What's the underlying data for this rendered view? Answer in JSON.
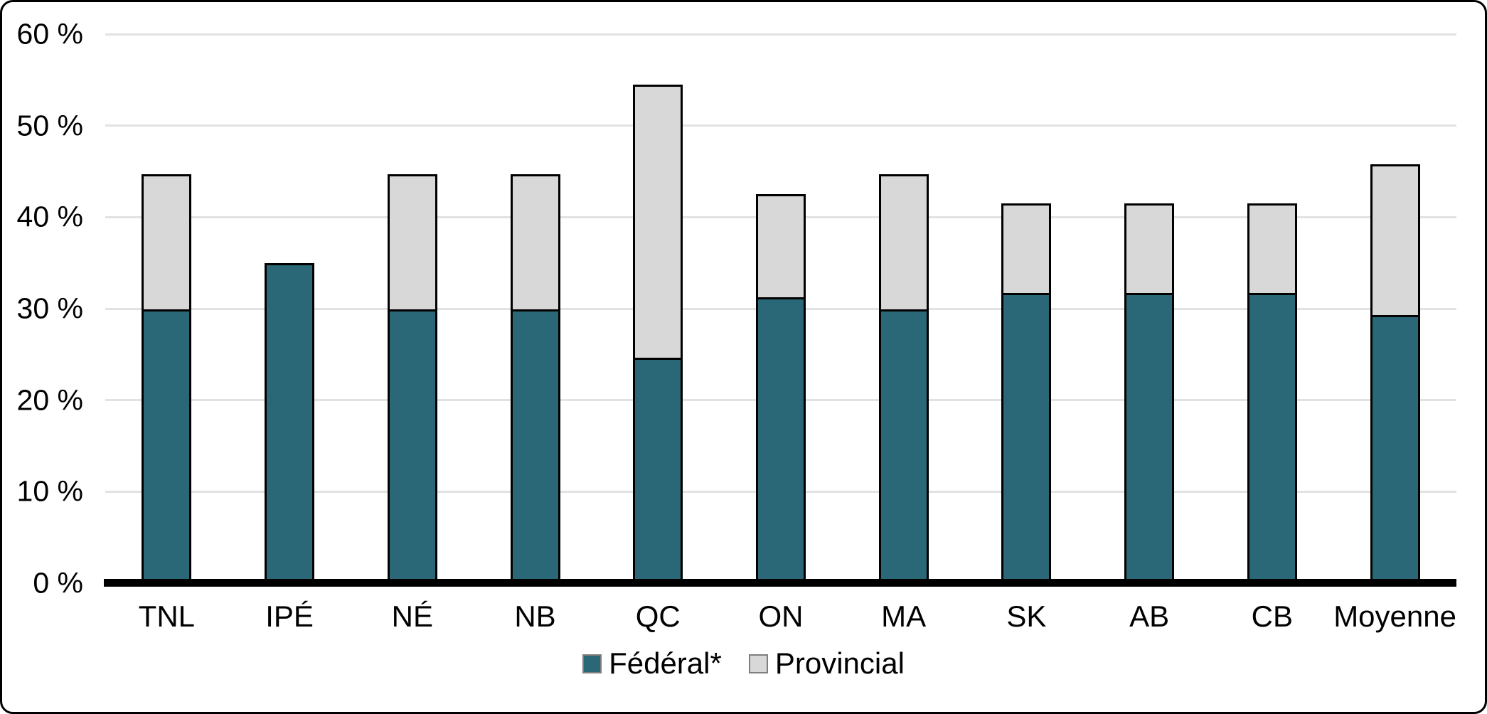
{
  "chart_data": {
    "type": "bar",
    "stacked": true,
    "title": "",
    "xlabel": "",
    "ylabel": "",
    "categories": [
      "TNL",
      "IPÉ",
      "NÉ",
      "NB",
      "QC",
      "ON",
      "MA",
      "SK",
      "AB",
      "CB",
      "Moyenne"
    ],
    "series": [
      {
        "name": "Fédéral*",
        "color": "#2A6878",
        "values": [
          29.7,
          35.0,
          29.7,
          29.7,
          24.4,
          31.0,
          29.7,
          31.5,
          31.5,
          31.5,
          29.1
        ]
      },
      {
        "name": "Provincial",
        "color": "#D8D8D8",
        "values": [
          15.0,
          0.0,
          15.0,
          15.0,
          30.1,
          11.5,
          15.0,
          10.0,
          10.0,
          10.0,
          16.7
        ]
      }
    ],
    "totals": [
      44.7,
      35.0,
      44.7,
      44.7,
      54.5,
      42.5,
      44.7,
      41.5,
      41.5,
      41.5,
      45.8
    ],
    "ylim": [
      0,
      60
    ],
    "y_ticks": [
      {
        "value": 60,
        "label": "60 %"
      },
      {
        "value": 50,
        "label": "50 %"
      },
      {
        "value": 40,
        "label": "40 %"
      },
      {
        "value": 30,
        "label": "30 %"
      },
      {
        "value": 20,
        "label": "20 %"
      },
      {
        "value": 10,
        "label": "10 %"
      },
      {
        "value": 0,
        "label": "0 %"
      }
    ],
    "grid": "horizontal",
    "legend_position": "bottom-center"
  },
  "legend": {
    "items": [
      {
        "label": "Fédéral*",
        "color": "#2A6878"
      },
      {
        "label": "Provincial",
        "color": "#D8D8D8"
      }
    ]
  },
  "colors": {
    "federal": "#2A6878",
    "provincial": "#D8D8D8",
    "bar_border": "#000000",
    "gridline": "#E2E2E2",
    "axis_line": "#000000",
    "background": "#FFFFFF",
    "frame_border": "#000000",
    "swatch_border": "#7F7F7F"
  }
}
